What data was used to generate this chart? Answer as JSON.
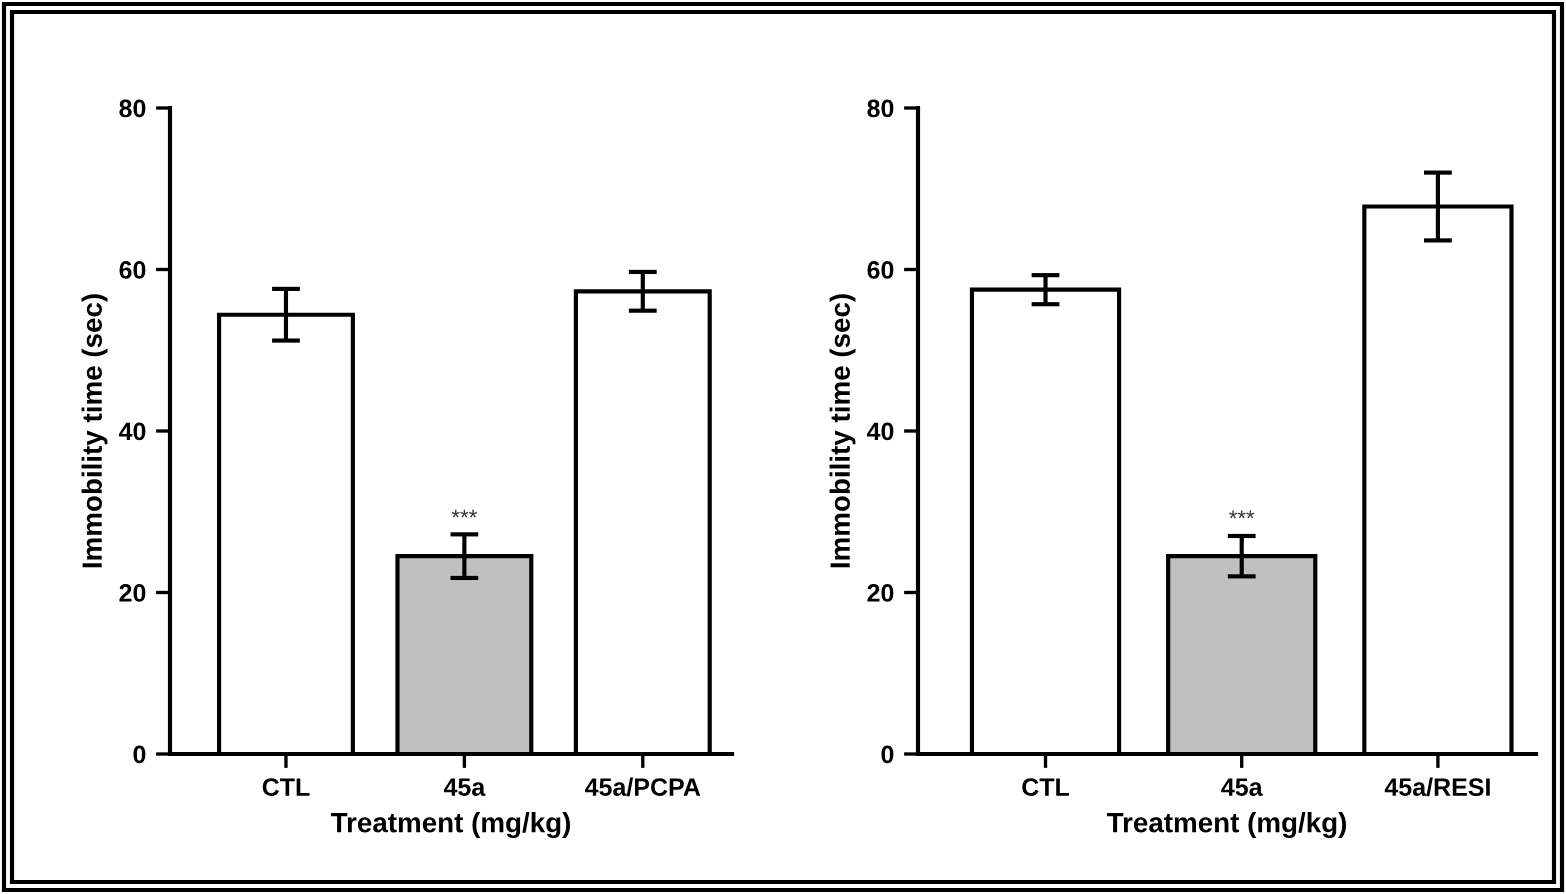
{
  "chart_data": [
    {
      "type": "bar",
      "xlabel": "Treatment (mg/kg)",
      "ylabel": "Immobility time (sec)",
      "categories": [
        "CTL",
        "45a",
        "45a/PCPA"
      ],
      "values": [
        54.4,
        24.5,
        57.3
      ],
      "errors": [
        3.2,
        2.7,
        2.4
      ],
      "colors": [
        "#ffffff",
        "#c0c0c0",
        "#ffffff"
      ],
      "ylim": [
        0,
        80
      ],
      "yticks": [
        0,
        20,
        40,
        60,
        80
      ],
      "grid": false,
      "legend": false,
      "annotations": [
        {
          "text": "***",
          "x": "45a",
          "y": 27.1
        }
      ]
    },
    {
      "type": "bar",
      "xlabel": "Treatment (mg/kg)",
      "ylabel": "Immobility time (sec)",
      "categories": [
        "CTL",
        "45a",
        "45a/RESI"
      ],
      "values": [
        57.5,
        24.5,
        67.8
      ],
      "errors": [
        1.8,
        2.5,
        4.2
      ],
      "colors": [
        "#ffffff",
        "#c0c0c0",
        "#ffffff"
      ],
      "ylim": [
        0,
        80
      ],
      "yticks": [
        0,
        20,
        40,
        60,
        80
      ],
      "grid": false,
      "legend": false,
      "annotations": [
        {
          "text": "***",
          "x": "45a",
          "y": 27.0
        }
      ]
    }
  ]
}
